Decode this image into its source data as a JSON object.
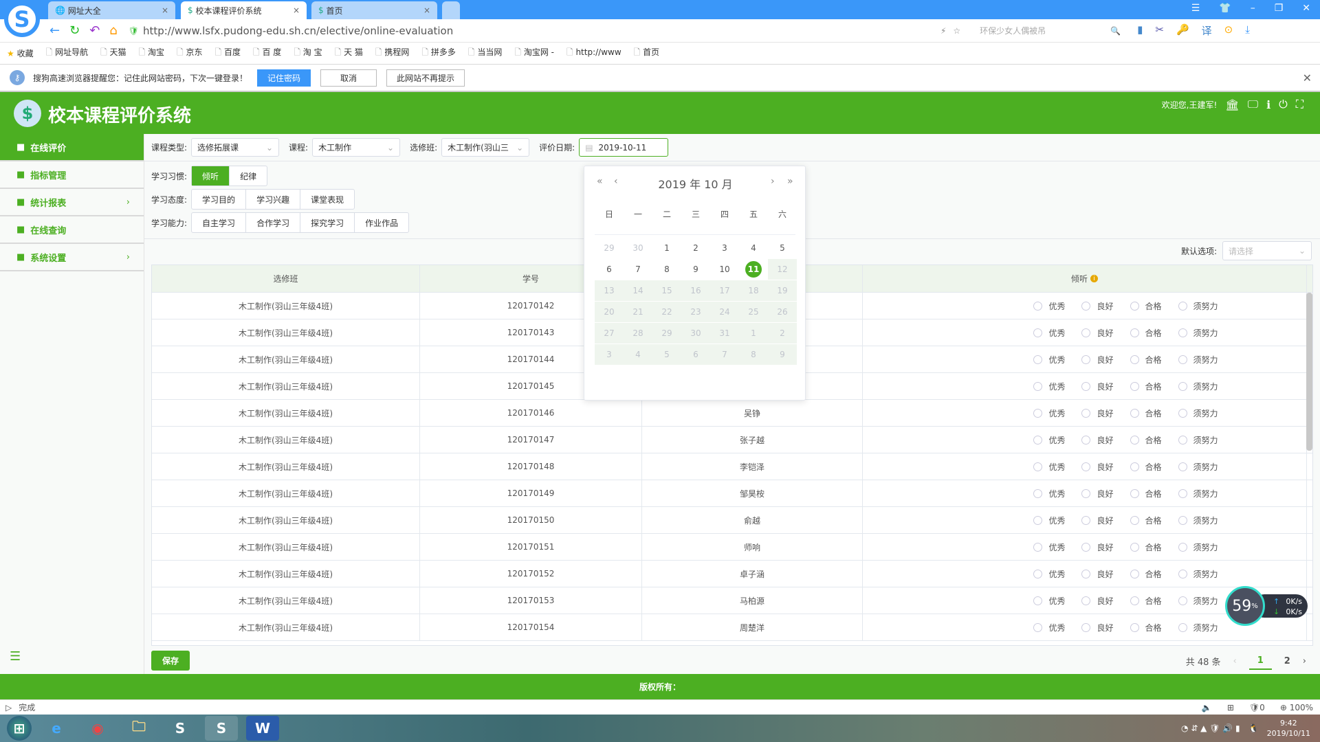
{
  "browser": {
    "tabs": [
      {
        "label": "网址大全",
        "active": false
      },
      {
        "label": "校本课程评价系统",
        "active": true
      },
      {
        "label": "首页",
        "active": false
      }
    ],
    "url": "http://www.lsfx.pudong-edu.sh.cn/elective/online-evaluation",
    "search_placeholder": "环保少女人偶被吊",
    "bookmarks": [
      "收藏",
      "网址导航",
      "天猫",
      "淘宝",
      "京东",
      "百度",
      "百 度",
      "淘 宝",
      "天 猫",
      "携程网",
      "拼多多",
      "当当网",
      "淘宝网 -",
      "http://www",
      "首页"
    ],
    "notice": {
      "text": "搜狗高速浏览器提醒您：记住此网站密码，下次一键登录！",
      "remember": "记住密码",
      "cancel": "取消",
      "never": "此网站不再提示"
    },
    "status_text": "完成",
    "status_right": {
      "ad_count": "0",
      "zoom": "100%"
    }
  },
  "app": {
    "title": "校本课程评价系统",
    "welcome": "欢迎您,王建军!",
    "accent": "#4caf22"
  },
  "sidebar": {
    "items": [
      {
        "label": "在线评价",
        "icon": "calendar-check-icon",
        "active": true
      },
      {
        "label": "指标管理",
        "icon": "book-icon"
      },
      {
        "label": "统计报表",
        "icon": "report-icon",
        "chevron": true
      },
      {
        "label": "在线查询",
        "icon": "graduation-cap-icon"
      },
      {
        "label": "系统设置",
        "icon": "gear-icon",
        "chevron": true
      }
    ]
  },
  "filters": {
    "course_type_label": "课程类型:",
    "course_type": "选修拓展课",
    "course_label": "课程:",
    "course": "木工制作",
    "class_label": "选修班:",
    "class": "木工制作(羽山三",
    "date_label": "评价日期:",
    "date": "2019-10-11",
    "habit_label": "学习习惯:",
    "habits": [
      "倾听",
      "纪律"
    ],
    "attitude_label": "学习态度:",
    "attitudes": [
      "学习目的",
      "学习兴趣",
      "课堂表现"
    ],
    "ability_label": "学习能力:",
    "abilities": [
      "自主学习",
      "合作学习",
      "探究学习",
      "作业作品"
    ],
    "default_label": "默认选项:",
    "default_placeholder": "请选择"
  },
  "calendar": {
    "title": "2019 年  10 月",
    "weekdays": [
      "日",
      "一",
      "二",
      "三",
      "四",
      "五",
      "六"
    ],
    "days": [
      "29",
      "30",
      "1",
      "2",
      "3",
      "4",
      "5",
      "6",
      "7",
      "8",
      "9",
      "10",
      "11",
      "12",
      "13",
      "14",
      "15",
      "16",
      "17",
      "18",
      "19",
      "20",
      "21",
      "22",
      "23",
      "24",
      "25",
      "26",
      "27",
      "28",
      "29",
      "30",
      "31",
      "1",
      "2",
      "3",
      "4",
      "5",
      "6",
      "7",
      "8",
      "9"
    ],
    "selected": "11"
  },
  "table": {
    "headers": [
      "选修班",
      "学号",
      "",
      "倾听"
    ],
    "options": [
      "优秀",
      "良好",
      "合格",
      "须努力"
    ],
    "rows": [
      {
        "class": "木工制作(羽山三年级4班)",
        "id": "120170142",
        "name": ""
      },
      {
        "class": "木工制作(羽山三年级4班)",
        "id": "120170143",
        "name": ""
      },
      {
        "class": "木工制作(羽山三年级4班)",
        "id": "120170144",
        "name": ""
      },
      {
        "class": "木工制作(羽山三年级4班)",
        "id": "120170145",
        "name": ""
      },
      {
        "class": "木工制作(羽山三年级4班)",
        "id": "120170146",
        "name": "吴铮"
      },
      {
        "class": "木工制作(羽山三年级4班)",
        "id": "120170147",
        "name": "张子越"
      },
      {
        "class": "木工制作(羽山三年级4班)",
        "id": "120170148",
        "name": "李铠泽"
      },
      {
        "class": "木工制作(羽山三年级4班)",
        "id": "120170149",
        "name": "邹昊桉"
      },
      {
        "class": "木工制作(羽山三年级4班)",
        "id": "120170150",
        "name": "俞越"
      },
      {
        "class": "木工制作(羽山三年级4班)",
        "id": "120170151",
        "name": "师响"
      },
      {
        "class": "木工制作(羽山三年级4班)",
        "id": "120170152",
        "name": "卓子涵"
      },
      {
        "class": "木工制作(羽山三年级4班)",
        "id": "120170153",
        "name": "马柏源"
      },
      {
        "class": "木工制作(羽山三年级4班)",
        "id": "120170154",
        "name": "周楚洋"
      }
    ]
  },
  "save_label": "保存",
  "pagination": {
    "total": "共 48 条",
    "pages": [
      "1",
      "2"
    ],
    "current": "1"
  },
  "footer": "版权所有：",
  "net_widget": {
    "percent": "59",
    "unit": "%",
    "up": "0",
    "down": "0",
    "rate_unit": "K/s"
  },
  "clock": {
    "time": "9:42",
    "date": "2019/10/11"
  }
}
